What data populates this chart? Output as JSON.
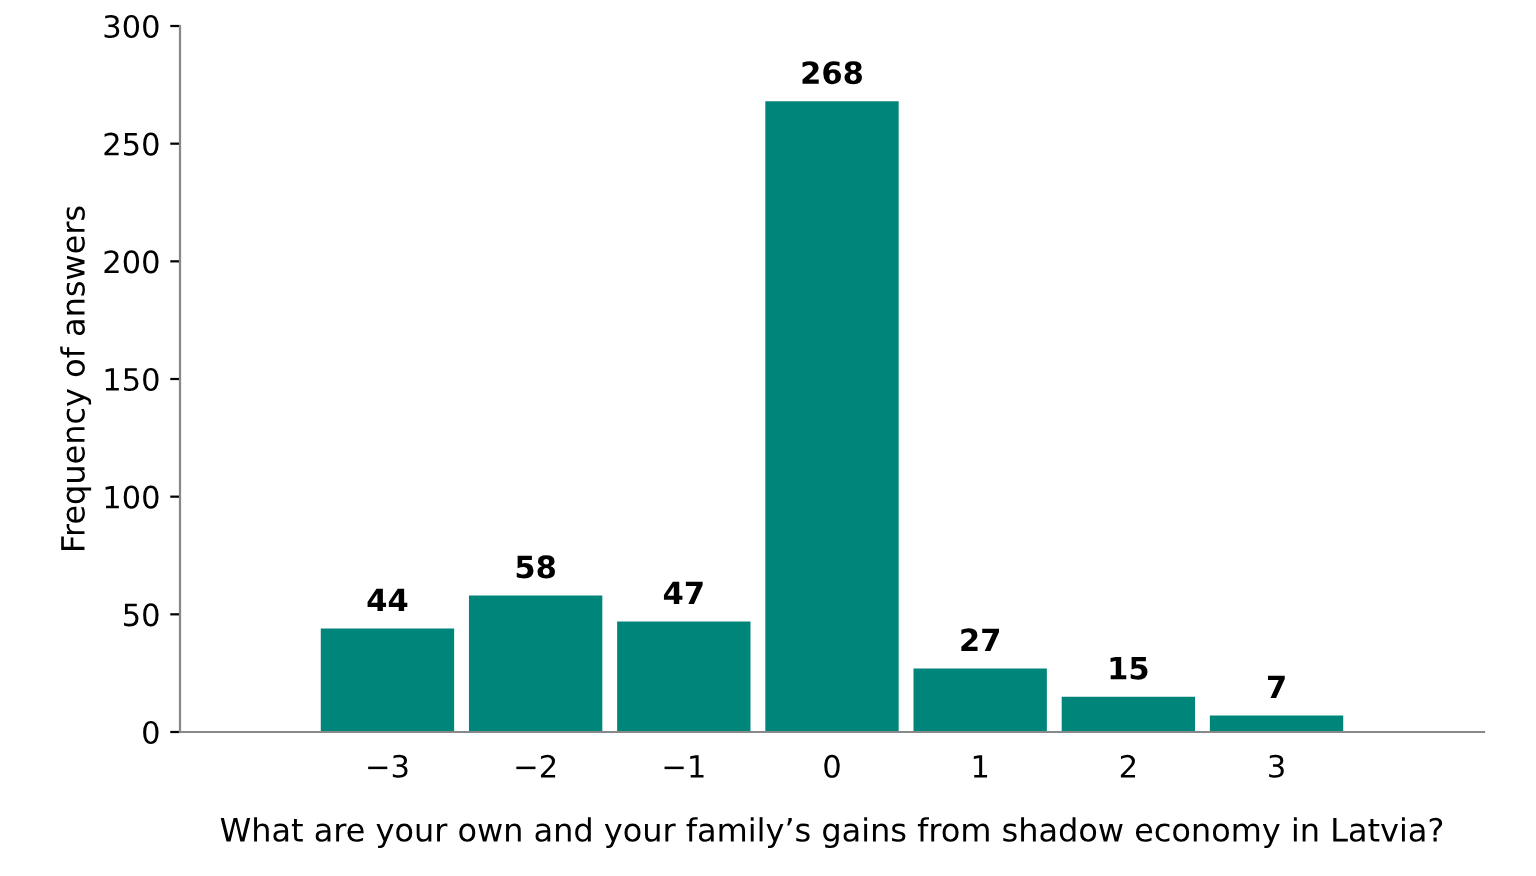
{
  "chart_data": {
    "type": "bar",
    "xlabel": "What are your own and your family’s gains from shadow economy in Latvia?",
    "ylabel": "Frequency of answers",
    "categories": [
      "−3",
      "−2",
      "−1",
      "0",
      "1",
      "2",
      "3"
    ],
    "values": [
      44,
      58,
      47,
      268,
      27,
      15,
      7
    ],
    "color": "#00857a",
    "ylim": [
      0,
      300
    ],
    "yticks": [
      0,
      50,
      100,
      150,
      200,
      250,
      300
    ],
    "data_labels": true,
    "grid": false,
    "legend": false
  }
}
